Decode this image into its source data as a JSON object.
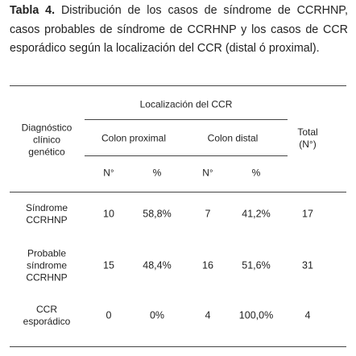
{
  "caption": {
    "label": "Tabla 4.",
    "text": "Distribución de los casos de síndrome de CCRHNP, casos probables de síndrome de CCRHNP y los casos de CCR esporádico según la localización del CCR (distal ó proximal)."
  },
  "table": {
    "header": {
      "diagnosis": [
        "Diagnóstico",
        "clínico",
        "genético"
      ],
      "location": "Localización del CCR",
      "groups": [
        "Colon proximal",
        "Colon distal"
      ],
      "subcolumns": [
        "N°",
        "%",
        "N°",
        "%"
      ],
      "total": [
        "Total",
        "(N°)"
      ]
    },
    "rows": [
      {
        "diagnosis": [
          "Síndrome",
          "CCRHNP"
        ],
        "cells": [
          "10",
          "58,8%",
          "7",
          "41,2%",
          "17"
        ]
      },
      {
        "diagnosis": [
          "Probable",
          "síndrome",
          "CCRHNP"
        ],
        "cells": [
          "15",
          "48,4%",
          "16",
          "51,6%",
          "31"
        ]
      },
      {
        "diagnosis": [
          "CCR",
          "esporádico"
        ],
        "cells": [
          "0",
          "0%",
          "4",
          "100,0%",
          "4"
        ]
      }
    ]
  }
}
